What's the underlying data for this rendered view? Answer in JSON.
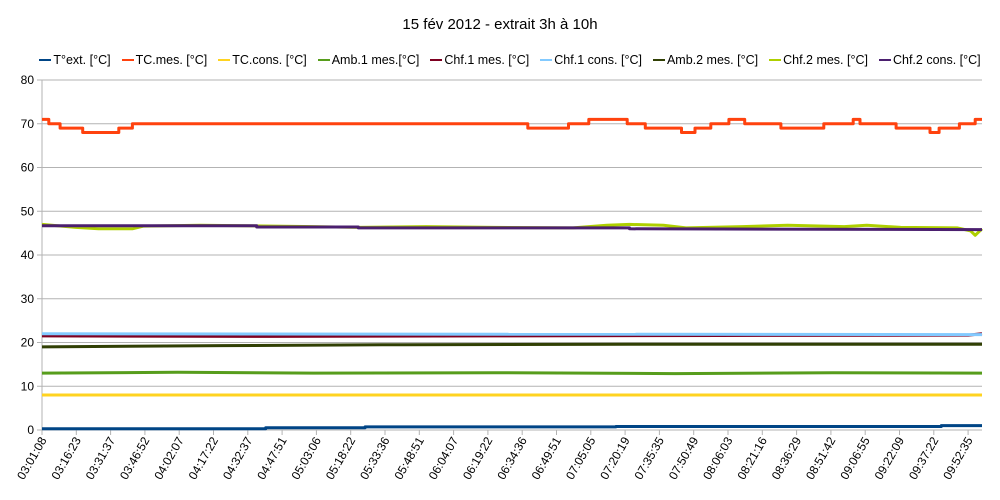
{
  "chart_data": {
    "type": "line",
    "title": "15 fév 2012 - extrait 3h à 10h",
    "xlabel": "",
    "ylabel": "",
    "ylim": [
      0,
      80
    ],
    "yticks": [
      "0",
      "10",
      "20",
      "30",
      "40",
      "50",
      "60",
      "70",
      "80"
    ],
    "grid": true,
    "legend_position": "top",
    "x_unit": "minutes since 03:01:08",
    "xlim": [
      0,
      416
    ],
    "xticks": [
      "03:01:08",
      "03:16:23",
      "03:31:37",
      "03:46:52",
      "04:02:07",
      "04:17:22",
      "04:32:37",
      "04:47:51",
      "05:03:06",
      "05:18:22",
      "05:33:36",
      "05:48:51",
      "06:04:07",
      "06:19:22",
      "06:34:36",
      "06:49:51",
      "07:05:05",
      "07:20:19",
      "07:35:35",
      "07:50:49",
      "08:06:03",
      "08:21:16",
      "08:36:29",
      "08:51:42",
      "09:06:55",
      "09:22:09",
      "09:37:22",
      "09:52:35"
    ],
    "series": [
      {
        "name": "T°ext. [°C]",
        "color": "#004586",
        "points": [
          [
            0,
            0.3
          ],
          [
            99,
            0.3
          ],
          [
            99,
            0.5
          ],
          [
            143,
            0.5
          ],
          [
            143,
            0.7
          ],
          [
            254,
            0.7
          ],
          [
            254,
            0.8
          ],
          [
            398,
            0.8
          ],
          [
            398,
            1.0
          ],
          [
            416,
            1.0
          ]
        ]
      },
      {
        "name": "TC.mes. [°C]",
        "color": "#ff420e",
        "points": [
          [
            0,
            71
          ],
          [
            3,
            71
          ],
          [
            3,
            70
          ],
          [
            8,
            70
          ],
          [
            8,
            69
          ],
          [
            18,
            69
          ],
          [
            18,
            68
          ],
          [
            34,
            68
          ],
          [
            34,
            69
          ],
          [
            40,
            69
          ],
          [
            40,
            70
          ],
          [
            215,
            70
          ],
          [
            215,
            69
          ],
          [
            233,
            69
          ],
          [
            233,
            70
          ],
          [
            242,
            70
          ],
          [
            242,
            71
          ],
          [
            259,
            71
          ],
          [
            259,
            70
          ],
          [
            267,
            70
          ],
          [
            267,
            69
          ],
          [
            283,
            69
          ],
          [
            283,
            68
          ],
          [
            289,
            68
          ],
          [
            289,
            69
          ],
          [
            296,
            69
          ],
          [
            296,
            70
          ],
          [
            304,
            70
          ],
          [
            304,
            71
          ],
          [
            311,
            71
          ],
          [
            311,
            70
          ],
          [
            327,
            70
          ],
          [
            327,
            69
          ],
          [
            346,
            69
          ],
          [
            346,
            70
          ],
          [
            359,
            70
          ],
          [
            359,
            71
          ],
          [
            362,
            71
          ],
          [
            362,
            70
          ],
          [
            378,
            70
          ],
          [
            378,
            69
          ],
          [
            393,
            69
          ],
          [
            393,
            68
          ],
          [
            397,
            68
          ],
          [
            397,
            69
          ],
          [
            406,
            69
          ],
          [
            406,
            70
          ],
          [
            413,
            70
          ],
          [
            413,
            71
          ],
          [
            416,
            71
          ]
        ]
      },
      {
        "name": "TC.cons. [°C]",
        "color": "#ffd320",
        "points": [
          [
            0,
            8
          ],
          [
            416,
            8
          ]
        ]
      },
      {
        "name": "Amb.1 mes.[°C]",
        "color": "#579d1c",
        "points": [
          [
            0,
            13
          ],
          [
            60,
            13.2
          ],
          [
            120,
            13
          ],
          [
            200,
            13.1
          ],
          [
            280,
            12.9
          ],
          [
            350,
            13.1
          ],
          [
            416,
            13
          ]
        ]
      },
      {
        "name": "Chf.1 mes. [°C]",
        "color": "#7e0021",
        "points": [
          [
            0,
            21.5
          ],
          [
            100,
            21.4
          ],
          [
            200,
            21.5
          ],
          [
            300,
            21.6
          ],
          [
            410,
            21.7
          ],
          [
            416,
            22
          ]
        ]
      },
      {
        "name": "Chf.1 cons. [°C]",
        "color": "#83caff",
        "points": [
          [
            0,
            22
          ],
          [
            416,
            21.8
          ]
        ]
      },
      {
        "name": "Amb.2 mes. [°C]",
        "color": "#314004",
        "points": [
          [
            0,
            19
          ],
          [
            80,
            19.3
          ],
          [
            160,
            19.5
          ],
          [
            260,
            19.6
          ],
          [
            416,
            19.6
          ]
        ]
      },
      {
        "name": "Chf.2 mes. [°C]",
        "color": "#aecf00",
        "points": [
          [
            0,
            47
          ],
          [
            15,
            46.3
          ],
          [
            25,
            46
          ],
          [
            40,
            46
          ],
          [
            45,
            46.6
          ],
          [
            70,
            46.8
          ],
          [
            90,
            46.7
          ],
          [
            120,
            46.5
          ],
          [
            140,
            46.3
          ],
          [
            170,
            46.5
          ],
          [
            200,
            46.3
          ],
          [
            235,
            46.2
          ],
          [
            250,
            46.8
          ],
          [
            260,
            47
          ],
          [
            275,
            46.8
          ],
          [
            285,
            46.2
          ],
          [
            310,
            46.5
          ],
          [
            330,
            46.8
          ],
          [
            355,
            46.5
          ],
          [
            365,
            46.8
          ],
          [
            380,
            46.3
          ],
          [
            405,
            46.2
          ],
          [
            411,
            45.5
          ],
          [
            413,
            44.5
          ],
          [
            416,
            46
          ]
        ]
      },
      {
        "name": "Chf.2 cons. [°C]",
        "color": "#4b1f6f",
        "points": [
          [
            0,
            46.7
          ],
          [
            95,
            46.7
          ],
          [
            95,
            46.4
          ],
          [
            140,
            46.4
          ],
          [
            140,
            46.2
          ],
          [
            260,
            46.2
          ],
          [
            260,
            46
          ],
          [
            416,
            45.8
          ]
        ]
      }
    ]
  }
}
